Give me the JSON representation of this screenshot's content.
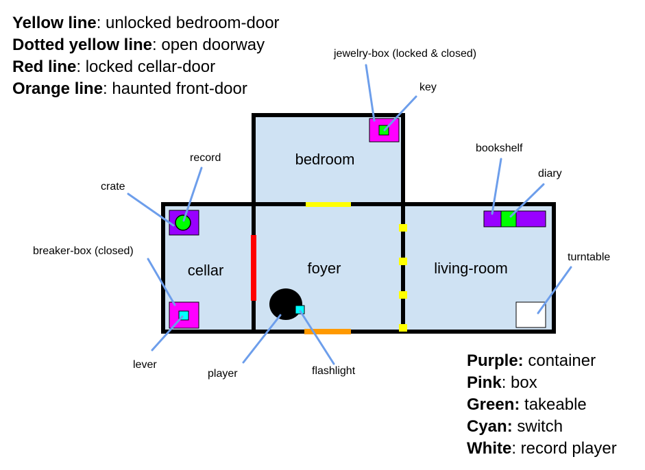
{
  "legend_top": [
    {
      "key": "Yellow line",
      "text": ": unlocked bedroom-door"
    },
    {
      "key": "Dotted yellow line",
      "text": ": open doorway"
    },
    {
      "key": "Red line",
      "text": ": locked cellar-door"
    },
    {
      "key": "Orange line",
      "text": ": haunted front-door"
    }
  ],
  "legend_bottom": [
    {
      "key": "Purple:",
      "text": " container"
    },
    {
      "key": "Pink",
      "text": ": box"
    },
    {
      "key": "Green:",
      "text": " takeable"
    },
    {
      "key": "Cyan:",
      "text": " switch"
    },
    {
      "key": "White",
      "text": ": record player"
    }
  ],
  "rooms": {
    "bedroom": "bedroom",
    "cellar": "cellar",
    "foyer": "foyer",
    "living_room": "living-room"
  },
  "labels": {
    "jewelry_box": "jewelry-box (locked & closed)",
    "key": "key",
    "record": "record",
    "crate": "crate",
    "breaker_box": "breaker-box (closed)",
    "lever": "lever",
    "player": "player",
    "flashlight": "flashlight",
    "bookshelf": "bookshelf",
    "diary": "diary",
    "turntable": "turntable"
  },
  "colors": {
    "room_fill": "#cfe2f3",
    "wall": "#000000",
    "yellow": "#ffff00",
    "red": "#ff0000",
    "orange": "#ff9900",
    "purple": "#9900ff",
    "pink": "#ff00ff",
    "green": "#00ff00",
    "cyan": "#00ffff",
    "white": "#ffffff",
    "pointer": "#6d9eeb"
  }
}
